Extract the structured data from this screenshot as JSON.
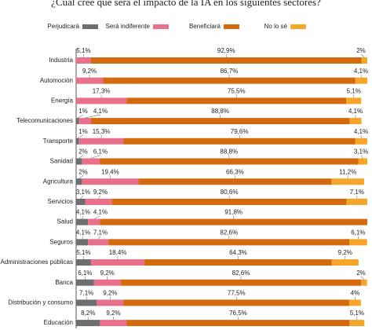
{
  "chart_data": {
    "type": "stacked-bar-horizontal",
    "title": "¿Cuál cree que será el impacto de la IA en los siguientes sectores?",
    "categories": [
      "Industria",
      "Automoción",
      "Energía",
      "Telecomunicaciones",
      "Transporte",
      "Sanidad",
      "Agricultura",
      "Servicios",
      "Salud",
      "Seguros",
      "Administraciones públicas",
      "Banca",
      "Distribución y consumo",
      "Educación"
    ],
    "xlim": [
      0,
      100
    ],
    "legend": "top",
    "series": [
      {
        "name": "Perjudicará",
        "color": "#6d6e70",
        "values": [
          0,
          0,
          0,
          1,
          1,
          2,
          2,
          3.1,
          4.1,
          4.1,
          5.1,
          6.1,
          7.1,
          8.2
        ],
        "value_labels": [
          null,
          null,
          null,
          "1%",
          "1%",
          "2%",
          "2%",
          "3,1%",
          "4,1%",
          "4,1%",
          "5,1%",
          "6,1%",
          "7,1%",
          "8,2%"
        ]
      },
      {
        "name": "Será indiferente",
        "color": "#e8708a",
        "values": [
          5.1,
          9.2,
          17.3,
          4.1,
          15.3,
          6.1,
          19.4,
          9.2,
          4.1,
          7.1,
          18.4,
          9.2,
          9.2,
          9.2
        ],
        "value_labels": [
          "5,1%",
          "9,2%",
          "17,3%",
          "4,1%",
          "15,3%",
          "6,1%",
          "19,4%",
          "9,2%",
          "4,1%",
          "7,1%",
          "18,4%",
          "9,2%",
          "9,2%",
          "9,2%"
        ]
      },
      {
        "name": "Beneficiará",
        "color": "#d4690e",
        "values": [
          92.9,
          86.7,
          75.5,
          88.8,
          79.6,
          88.8,
          66.3,
          80.6,
          91.8,
          82.6,
          64.3,
          82.6,
          77.5,
          76.5
        ],
        "value_labels": [
          "92,9%",
          "86,7%",
          "75,5%",
          "88,8%",
          "79,6%",
          "88,8%",
          "66,3%",
          "80,6%",
          "91,8%",
          "82,6%",
          "64,3%",
          "82,6%",
          "77,5%",
          "76,5%"
        ]
      },
      {
        "name": "No lo sé",
        "color": "#f4a52a",
        "values": [
          2,
          4.1,
          5.1,
          4.1,
          4.1,
          3.1,
          11.2,
          7.1,
          0,
          6.1,
          9.2,
          2,
          4,
          5.1
        ],
        "value_labels": [
          "2%",
          "4,1%",
          "5,1%",
          "4,1%",
          "4,1%",
          "3,1%",
          "11,2%",
          "7,1%",
          null,
          "6,1%",
          "9,2%",
          "2%",
          "4%",
          "5,1%"
        ]
      }
    ]
  }
}
